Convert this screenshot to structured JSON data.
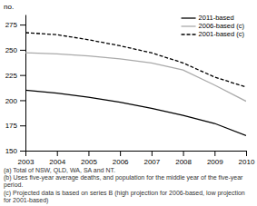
{
  "chart_data": {
    "type": "line",
    "x": [
      2003,
      2004,
      2005,
      2006,
      2007,
      2008,
      2009,
      2010
    ],
    "series": [
      {
        "name": "2011-based",
        "color": "#000000",
        "line_style": "solid",
        "values": [
          210,
          207,
          203,
          198,
          192,
          185,
          177,
          165
        ]
      },
      {
        "name": "2006-based (c)",
        "color": "#aaaaaa",
        "line_style": "solid",
        "values": [
          247,
          246,
          244,
          241,
          237,
          230,
          215,
          199
        ]
      },
      {
        "name": "2001-based (c)",
        "color": "#000000",
        "line_style": "dashed",
        "values": [
          267,
          265,
          260,
          254,
          247,
          237,
          223,
          213
        ]
      }
    ],
    "xlim": [
      2003,
      2010
    ],
    "xticks": [
      2003,
      2004,
      2005,
      2006,
      2007,
      2008,
      2009,
      2010
    ],
    "ylim": [
      150,
      285
    ],
    "yticks": [
      150,
      175,
      200,
      225,
      250,
      275
    ],
    "y_label": "no.",
    "annotations": [
      "(a) Total of NSW, QLD, WA, SA and NT.",
      "(b) Uses five-year average deaths, and population for the middle year of the five-year period.",
      "(c) Projected data is based on series B (high projection for 2006-based, low projection for 2001-based)"
    ],
    "legend": "upper right",
    "grid": false
  }
}
